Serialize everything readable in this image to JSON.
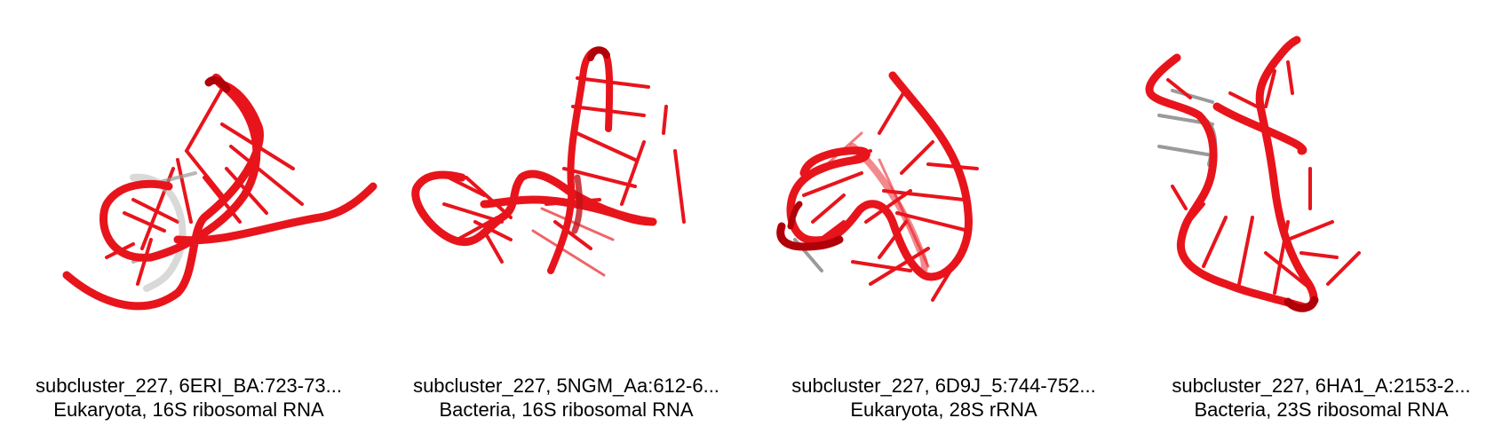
{
  "colors": {
    "rna_red": "#e8141c",
    "rna_dark": "#b00008",
    "rna_grey": "#9a9a9a"
  },
  "panels": [
    {
      "id_label": "subcluster_227, 6ERI_BA:723-73...",
      "organism_label": "Eukaryota, 16S ribosomal RNA"
    },
    {
      "id_label": "subcluster_227, 5NGM_Aa:612-6...",
      "organism_label": "Bacteria, 16S ribosomal RNA"
    },
    {
      "id_label": "subcluster_227, 6D9J_5:744-752...",
      "organism_label": "Eukaryota, 28S rRNA"
    },
    {
      "id_label": "subcluster_227, 6HA1_A:2153-2...",
      "organism_label": "Bacteria, 23S ribosomal RNA"
    }
  ]
}
